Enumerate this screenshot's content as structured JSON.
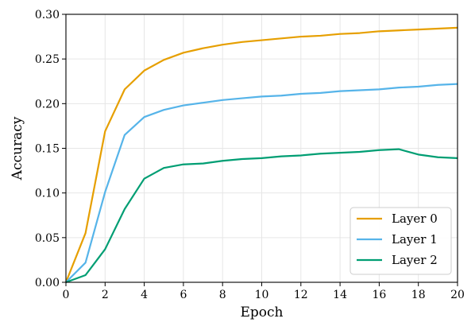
{
  "chart_data": {
    "type": "line",
    "title": "",
    "xlabel": "Epoch",
    "ylabel": "Accuracy",
    "xlim": [
      0,
      20
    ],
    "ylim": [
      0,
      0.3
    ],
    "xticks": [
      0,
      2,
      4,
      6,
      8,
      10,
      12,
      14,
      16,
      18,
      20
    ],
    "yticks": [
      "0.00",
      "0.05",
      "0.10",
      "0.15",
      "0.20",
      "0.25",
      "0.30"
    ],
    "grid": true,
    "legend_position": "lower-right",
    "x": [
      0,
      1,
      2,
      3,
      4,
      5,
      6,
      7,
      8,
      9,
      10,
      11,
      12,
      13,
      14,
      15,
      16,
      17,
      18,
      19,
      20
    ],
    "series": [
      {
        "name": "Layer 0",
        "color": "#E69F00",
        "values": [
          0.0,
          0.055,
          0.169,
          0.216,
          0.237,
          0.249,
          0.257,
          0.262,
          0.266,
          0.269,
          0.271,
          0.273,
          0.275,
          0.276,
          0.278,
          0.279,
          0.281,
          0.282,
          0.283,
          0.284,
          0.285
        ]
      },
      {
        "name": "Layer 1",
        "color": "#56B4E9",
        "values": [
          0.0,
          0.022,
          0.101,
          0.165,
          0.185,
          0.193,
          0.198,
          0.201,
          0.204,
          0.206,
          0.208,
          0.209,
          0.211,
          0.212,
          0.214,
          0.215,
          0.216,
          0.218,
          0.219,
          0.221,
          0.222
        ]
      },
      {
        "name": "Layer 2",
        "color": "#009E73",
        "values": [
          0.0,
          0.008,
          0.037,
          0.082,
          0.116,
          0.128,
          0.132,
          0.133,
          0.136,
          0.138,
          0.139,
          0.141,
          0.142,
          0.144,
          0.145,
          0.146,
          0.148,
          0.149,
          0.143,
          0.14,
          0.139
        ]
      }
    ]
  }
}
